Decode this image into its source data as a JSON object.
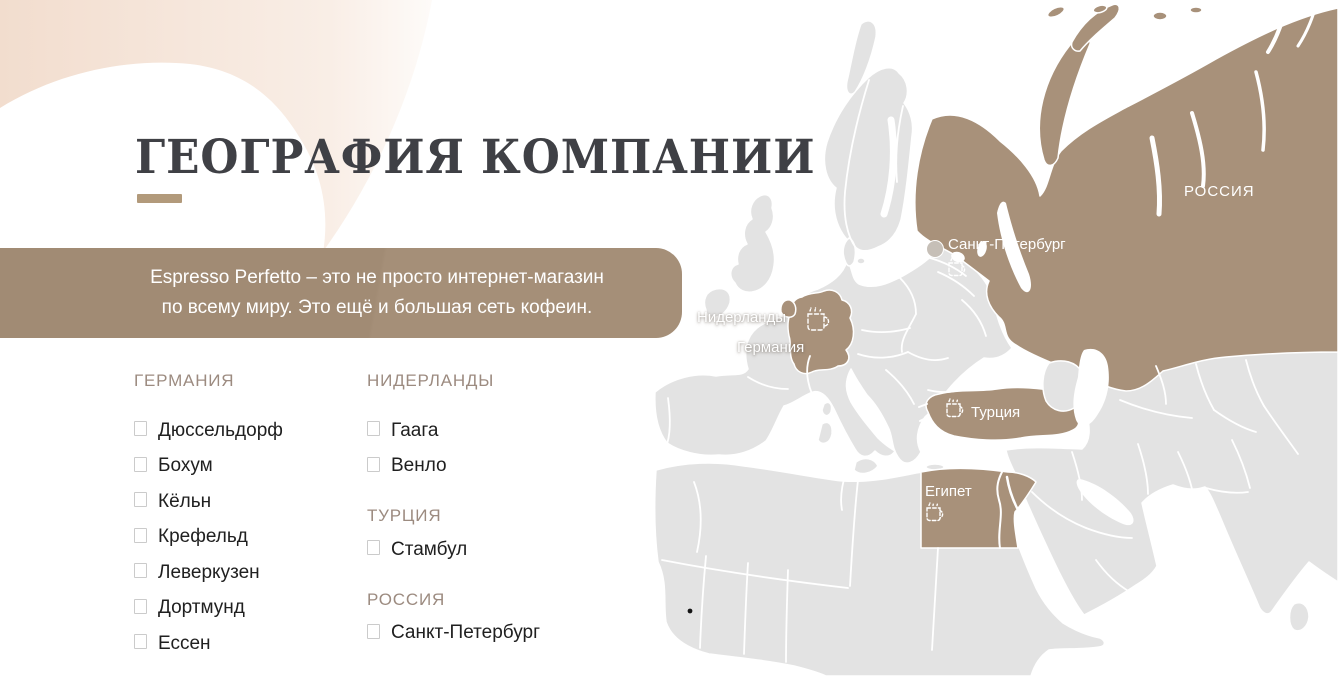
{
  "slide": {
    "title": "ГЕОГРАФИЯ КОМПАНИИ"
  },
  "banner": {
    "line1": "Espresso Perfetto – это не просто интернет-магазин",
    "line2": "по всему миру. Это ещё и большая сеть кофеин."
  },
  "legend": {
    "countries": [
      {
        "name": "ГЕРМАНИЯ",
        "cities": [
          "Дюссельдорф",
          "Бохум",
          "Кёльн",
          "Крефельд",
          "Леверкузен",
          "Дортмунд",
          "Ессен"
        ]
      },
      {
        "name": "НИДЕРЛАНДЫ",
        "cities": [
          "Гаага",
          "Венло"
        ]
      },
      {
        "name": "ТУРЦИЯ",
        "cities": [
          "Стамбул"
        ]
      },
      {
        "name": "РОССИЯ",
        "cities": [
          "Санкт-Петербург"
        ]
      }
    ],
    "columns": [
      [
        0
      ],
      [
        1,
        2,
        3
      ]
    ]
  },
  "map_labels": {
    "russia": "РОССИЯ",
    "saint_petersburg": "Санкт-Петербург",
    "netherlands": "Нидерланды",
    "germany": "Германия",
    "turkey": "Турция",
    "egypt": "Египет"
  },
  "icons": {
    "coffee_cup": "coffee-cup-icon",
    "marker": "location-marker-dot",
    "checkbox": "checkbox-glyph"
  },
  "colors": {
    "highlight_brown": "#a8917a",
    "banner_brown": "#a18b74",
    "map_gray": "#e3e3e3",
    "peach": "#f2ddce",
    "title_dark": "#3f4045",
    "header_tan": "#9c8b80",
    "underline_tan": "#b29a7b"
  }
}
